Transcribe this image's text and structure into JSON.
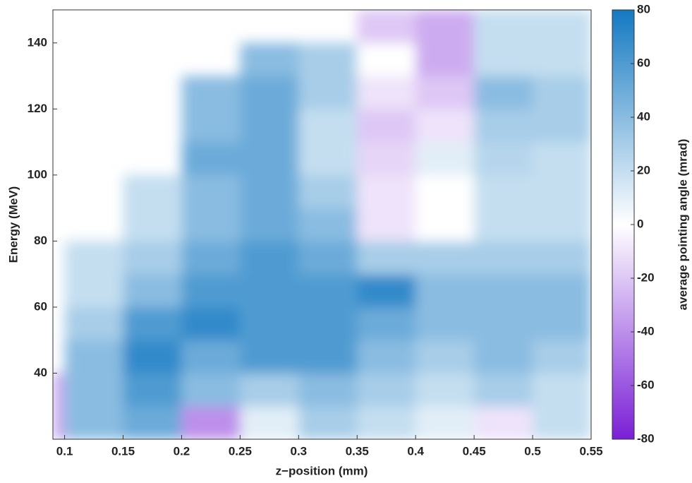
{
  "chart_data": {
    "type": "heatmap",
    "xlabel": "z−position (mm)",
    "ylabel": "Energy (MeV)",
    "colorbar_label": "average pointing angle  (mrad)",
    "xlim": [
      0.09,
      0.55
    ],
    "ylim": [
      20,
      150
    ],
    "xticks": [
      0.1,
      0.15,
      0.2,
      0.25,
      0.3,
      0.35,
      0.4,
      0.45,
      0.5,
      0.55
    ],
    "yticks": [
      40,
      60,
      80,
      100,
      120,
      140
    ],
    "clim": [
      -80,
      80
    ],
    "cticks": [
      -80,
      -60,
      -40,
      -20,
      0,
      20,
      40,
      60,
      80
    ],
    "cmap": [
      "#7a1fd6",
      "#ffffff",
      "#1479c2"
    ],
    "xbins": [
      0.09,
      0.1,
      0.15,
      0.2,
      0.25,
      0.3,
      0.35,
      0.4,
      0.45,
      0.5,
      0.55
    ],
    "ybins": [
      20,
      30,
      40,
      50,
      60,
      70,
      80,
      90,
      100,
      110,
      120,
      130,
      140,
      150
    ],
    "z": [
      [
        -30,
        40,
        50,
        -40,
        10,
        30,
        20,
        10,
        -10,
        20
      ],
      [
        -30,
        40,
        60,
        40,
        30,
        40,
        30,
        20,
        30,
        20
      ],
      [
        null,
        40,
        70,
        50,
        60,
        60,
        40,
        30,
        40,
        30
      ],
      [
        null,
        30,
        60,
        70,
        60,
        60,
        50,
        40,
        40,
        40
      ],
      [
        null,
        20,
        40,
        60,
        60,
        60,
        70,
        40,
        40,
        40
      ],
      [
        null,
        20,
        30,
        50,
        60,
        50,
        30,
        30,
        30,
        30
      ],
      [
        null,
        null,
        20,
        40,
        50,
        40,
        -10,
        0,
        20,
        20
      ],
      [
        null,
        null,
        20,
        40,
        50,
        30,
        -10,
        0,
        20,
        20
      ],
      [
        null,
        null,
        null,
        50,
        50,
        20,
        -15,
        10,
        25,
        20
      ],
      [
        null,
        null,
        null,
        40,
        50,
        20,
        -20,
        -10,
        30,
        30
      ],
      [
        null,
        null,
        null,
        40,
        50,
        30,
        -10,
        -20,
        40,
        30
      ],
      [
        null,
        null,
        null,
        null,
        40,
        30,
        0,
        -30,
        20,
        20
      ],
      [
        null,
        null,
        null,
        null,
        null,
        null,
        -20,
        -30,
        20,
        20
      ]
    ]
  }
}
